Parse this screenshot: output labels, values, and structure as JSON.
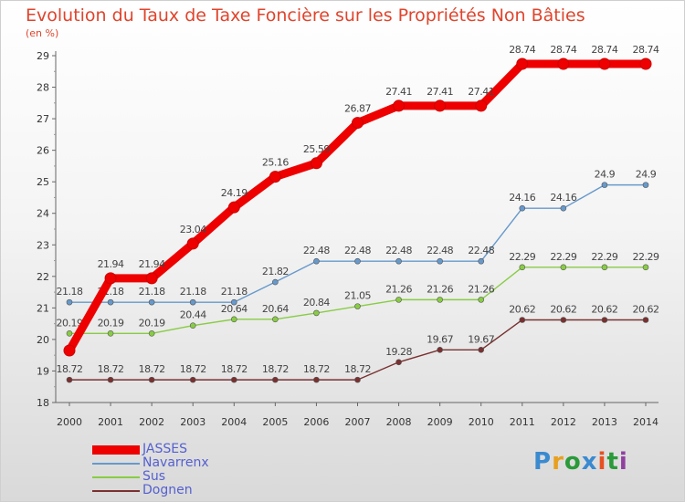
{
  "chart_data": {
    "type": "line",
    "title": "Evolution du Taux de Taxe Foncière sur les Propriétés Non Bâties",
    "subtitle": "(en %)",
    "x": [
      "2000",
      "2001",
      "2002",
      "2003",
      "2004",
      "2005",
      "2006",
      "2007",
      "2008",
      "2009",
      "2010",
      "2011",
      "2012",
      "2013",
      "2014"
    ],
    "ylim": [
      18,
      29
    ],
    "yticks": [
      "18",
      "19",
      "20",
      "21",
      "22",
      "23",
      "24",
      "25",
      "26",
      "27",
      "28",
      "29"
    ],
    "grid": false,
    "legend_position": "bottom-left",
    "series": [
      {
        "name": "JASSES",
        "color": "#ee0000",
        "values": [
          19.65,
          21.94,
          21.94,
          23.04,
          24.19,
          25.16,
          25.59,
          26.87,
          27.41,
          27.41,
          27.41,
          28.74,
          28.74,
          28.74,
          28.74
        ],
        "labels": [
          "",
          "21.94",
          "21.94",
          "23.04",
          "24.19",
          "25.16",
          "25.59",
          "26.87",
          "27.41",
          "27.41",
          "27.41",
          "28.74",
          "28.74",
          "28.74",
          "28.74"
        ]
      },
      {
        "name": "Navarrenx",
        "color": "#6699cc",
        "values": [
          21.18,
          21.18,
          21.18,
          21.18,
          21.18,
          21.82,
          22.48,
          22.48,
          22.48,
          22.48,
          22.48,
          24.16,
          24.16,
          24.9,
          24.9
        ],
        "labels": [
          "21.18",
          "21.18",
          "21.18",
          "21.18",
          "21.18",
          "21.82",
          "22.48",
          "22.48",
          "22.48",
          "22.48",
          "22.48",
          "24.16",
          "24.16",
          "24.9",
          "24.9"
        ]
      },
      {
        "name": "Sus",
        "color": "#88cc44",
        "values": [
          20.19,
          20.19,
          20.19,
          20.44,
          20.64,
          20.64,
          20.84,
          21.05,
          21.26,
          21.26,
          21.26,
          22.29,
          22.29,
          22.29,
          22.29
        ],
        "labels": [
          "20.19",
          "20.19",
          "20.19",
          "20.44",
          "20.64",
          "20.64",
          "20.84",
          "21.05",
          "21.26",
          "21.26",
          "21.26",
          "22.29",
          "22.29",
          "22.29",
          "22.29"
        ]
      },
      {
        "name": "Dognen",
        "color": "#7a3030",
        "values": [
          18.72,
          18.72,
          18.72,
          18.72,
          18.72,
          18.72,
          18.72,
          18.72,
          19.28,
          19.67,
          19.67,
          20.62,
          20.62,
          20.62,
          20.62
        ],
        "labels": [
          "18.72",
          "18.72",
          "18.72",
          "18.72",
          "18.72",
          "18.72",
          "18.72",
          "18.72",
          "19.28",
          "19.67",
          "19.67",
          "20.62",
          "20.62",
          "20.62",
          "20.62"
        ]
      }
    ]
  },
  "logo": {
    "text": "Proxiti",
    "letters": [
      "P",
      "r",
      "o",
      "x",
      "i",
      "t",
      "i"
    ],
    "colors": [
      "#3a8ad0",
      "#e8a020",
      "#2a9a3a",
      "#3a8ad0",
      "#e85020",
      "#2a9a3a",
      "#9040a0"
    ]
  }
}
